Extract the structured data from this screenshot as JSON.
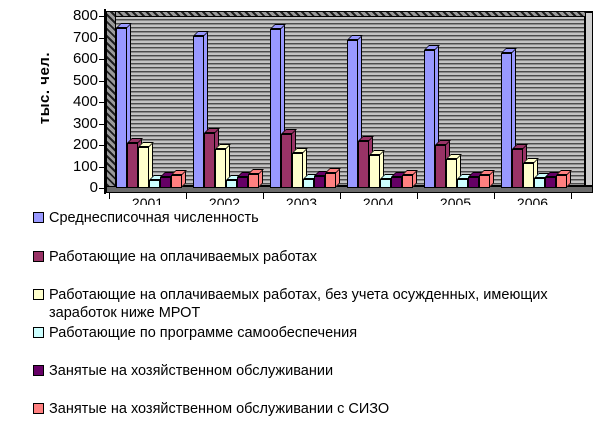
{
  "y_axis": {
    "title": "тыс. чел.",
    "ticks": [
      0,
      100,
      200,
      300,
      400,
      500,
      600,
      700,
      800
    ]
  },
  "chart_data": {
    "type": "bar",
    "bar_style": "3d-clustered",
    "title": "",
    "xlabel": "",
    "ylabel": "тыс. чел.",
    "ylim": [
      0,
      800
    ],
    "grid": "horizontal-stripes",
    "legend_position": "bottom-left",
    "categories": [
      "2001",
      "2002",
      "2003",
      "2004",
      "2005",
      "2006"
    ],
    "series": [
      {
        "name": "Среднесписочная численность",
        "color": "#9999FF",
        "values": [
          745,
          705,
          740,
          690,
          640,
          630
        ]
      },
      {
        "name": "Работающие на оплачиваемых работах",
        "color": "#993366",
        "values": [
          210,
          255,
          250,
          220,
          200,
          180
        ]
      },
      {
        "name": "Работающие на оплачиваемых работах, без учета осужденных, имеющих заработок ниже МРОТ",
        "color": "#FFFFCC",
        "values": [
          190,
          180,
          165,
          155,
          135,
          115
        ]
      },
      {
        "name": "Работающие по программе самообеспечения",
        "color": "#CCFFFF",
        "values": [
          35,
          35,
          40,
          40,
          40,
          45
        ]
      },
      {
        "name": "Занятые на хозяйственном обслуживании",
        "color": "#660066",
        "values": [
          50,
          52,
          55,
          50,
          50,
          50
        ]
      },
      {
        "name": "Занятые на хозяйственном обслуживании с СИЗО",
        "color": "#FF8080",
        "values": [
          62,
          64,
          68,
          60,
          60,
          62
        ]
      }
    ]
  }
}
